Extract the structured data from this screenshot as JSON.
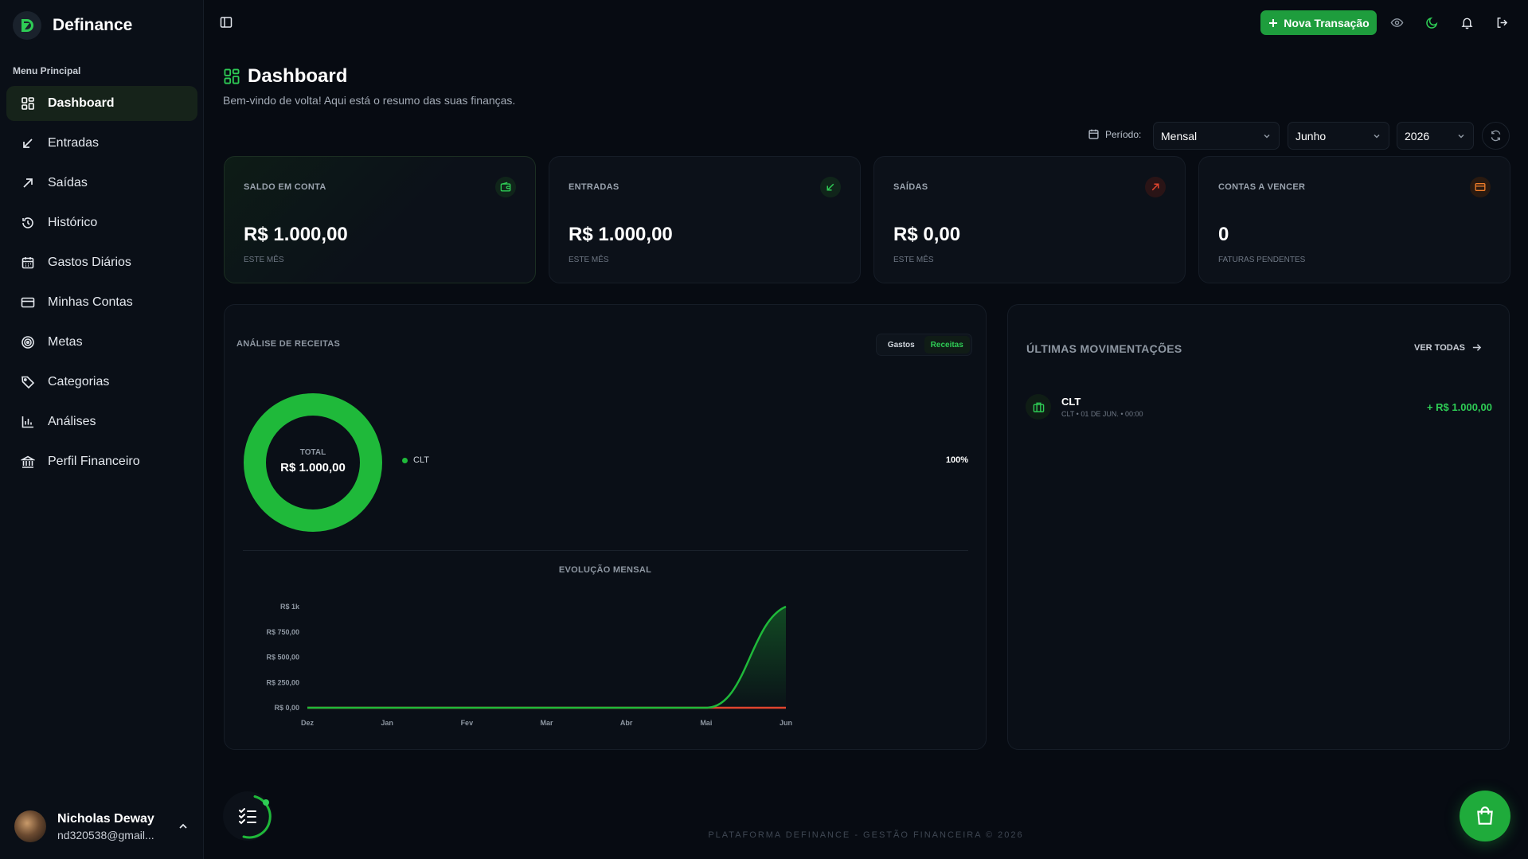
{
  "app": {
    "name": "Definance"
  },
  "colors": {
    "accent": "#1fb93a",
    "expense": "#e0452e",
    "warning": "#f07d2a",
    "background": "#070b12"
  },
  "sidebar": {
    "menu_label": "Menu Principal",
    "items": [
      {
        "label": "Dashboard",
        "icon": "dashboard-icon",
        "active": true
      },
      {
        "label": "Entradas",
        "icon": "arrow-down-left-icon"
      },
      {
        "label": "Saídas",
        "icon": "arrow-up-right-icon"
      },
      {
        "label": "Histórico",
        "icon": "history-icon"
      },
      {
        "label": "Gastos Diários",
        "icon": "calendar-icon"
      },
      {
        "label": "Minhas Contas",
        "icon": "credit-card-icon"
      },
      {
        "label": "Metas",
        "icon": "target-icon"
      },
      {
        "label": "Categorias",
        "icon": "tag-icon"
      },
      {
        "label": "Análises",
        "icon": "bar-chart-icon"
      },
      {
        "label": "Perfil Financeiro",
        "icon": "bank-icon"
      }
    ],
    "user": {
      "name": "Nicholas Deway",
      "email": "nd320538@gmail..."
    }
  },
  "topbar": {
    "new_transaction": "Nova Transação"
  },
  "header": {
    "title": "Dashboard",
    "subtitle": "Bem-vindo de volta! Aqui está o resumo das suas finanças."
  },
  "filter": {
    "label": "Período:",
    "period": "Mensal",
    "month": "Junho",
    "year": "2026"
  },
  "cards": [
    {
      "label": "SALDO EM CONTA",
      "value": "R$ 1.000,00",
      "note": "ESTE MÊS",
      "icon": "wallet-icon"
    },
    {
      "label": "ENTRADAS",
      "value": "R$ 1.000,00",
      "note": "ESTE MÊS",
      "icon": "arrow-down-left-icon"
    },
    {
      "label": "SAÍDAS",
      "value": "R$ 0,00",
      "note": "ESTE MÊS",
      "icon": "arrow-up-right-icon"
    },
    {
      "label": "CONTAS A VENCER",
      "value": "0",
      "note": "FATURAS PENDENTES",
      "icon": "credit-card-icon"
    }
  ],
  "analysis": {
    "title": "ANÁLISE DE RECEITAS",
    "toggle": {
      "expenses": "Gastos",
      "income": "Receitas",
      "selected": "Receitas"
    },
    "donut": {
      "total_label": "TOTAL",
      "total_value": "R$ 1.000,00"
    },
    "legend": [
      {
        "label": "CLT",
        "percent": "100%"
      }
    ],
    "evolution_title": "EVOLUÇÃO MENSAL"
  },
  "chart_data": [
    {
      "type": "pie",
      "labels": [
        "CLT"
      ],
      "values": [
        100
      ],
      "colors": [
        "#1fb93a"
      ]
    },
    {
      "type": "area",
      "title": "EVOLUÇÃO MENSAL",
      "categories": [
        "Dez",
        "Jan",
        "Fev",
        "Mar",
        "Abr",
        "Mai",
        "Jun"
      ],
      "series": [
        {
          "values": [
            0,
            0,
            0,
            0,
            0,
            0,
            1000
          ],
          "color": "#1fb93a"
        },
        {
          "values": [
            0,
            0,
            0,
            0,
            0,
            0,
            0
          ],
          "color": "#e0452e"
        }
      ],
      "y_ticks": [
        "R$ 0,00",
        "R$ 250,00",
        "R$ 500,00",
        "R$ 750,00",
        "R$ 1k"
      ],
      "ylim": [
        0,
        1000
      ]
    }
  ],
  "movements": {
    "title": "ÚLTIMAS MOVIMENTAÇÕES",
    "see_all": "VER TODAS",
    "items": [
      {
        "name": "CLT",
        "meta": "CLT • 01 DE JUN. • 00:00",
        "amount": "+ R$ 1.000,00",
        "icon": "briefcase-icon"
      }
    ]
  },
  "footer": {
    "text": "PLATAFORMA DEFINANCE - GESTÃO FINANCEIRA © 2026"
  }
}
